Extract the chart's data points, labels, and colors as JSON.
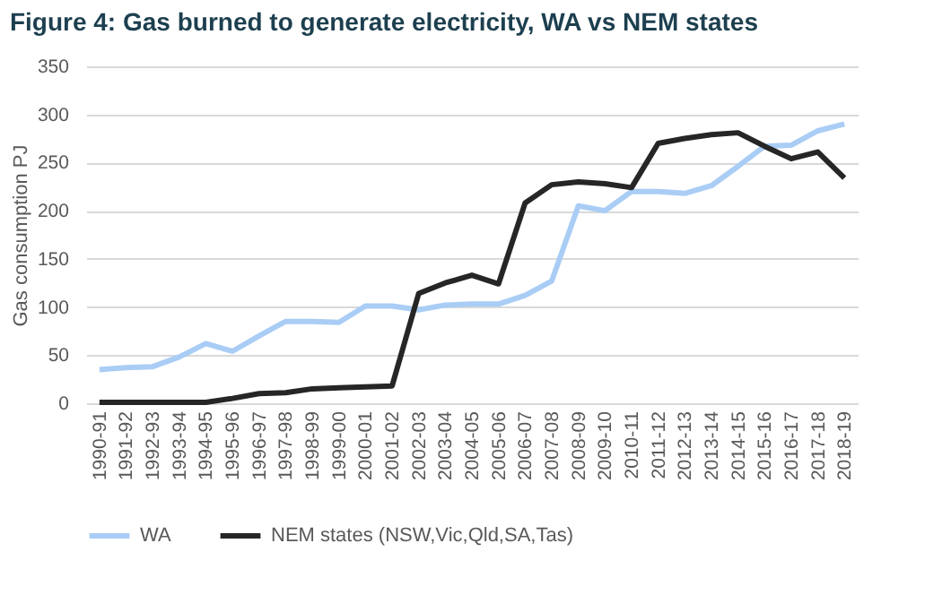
{
  "chart_data": {
    "type": "line",
    "title": "Figure 4: Gas burned to generate electricity, WA vs NEM states",
    "ylabel": "Gas consumption PJ",
    "categories": [
      "1990-91",
      "1991-92",
      "1992-93",
      "1993-94",
      "1994-95",
      "1995-96",
      "1996-97",
      "1997-98",
      "1998-99",
      "1999-00",
      "2000-01",
      "2001-02",
      "2002-03",
      "2003-04",
      "2004-05",
      "2005-06",
      "2006-07",
      "2007-08",
      "2008-09",
      "2009-10",
      "2010-11",
      "2011-12",
      "2012-13",
      "2013-14",
      "2014-15",
      "2015-16",
      "2016-17",
      "2017-18",
      "2018-19"
    ],
    "series": [
      {
        "name": "WA",
        "color": "#a9cdf5",
        "values": [
          35,
          37,
          38,
          48,
          62,
          54,
          70,
          85,
          85,
          84,
          101,
          101,
          97,
          102,
          103,
          103,
          112,
          127,
          205,
          200,
          220,
          220,
          218,
          226,
          246,
          267,
          268,
          283,
          290
        ]
      },
      {
        "name": "NEM states (NSW,Vic,Qld,SA,Tas)",
        "color": "#262626",
        "values": [
          1,
          1,
          1,
          1,
          1,
          5,
          10,
          11,
          15,
          16,
          17,
          18,
          114,
          125,
          133,
          124,
          208,
          227,
          230,
          228,
          224,
          270,
          275,
          279,
          281,
          267,
          254,
          261,
          234
        ]
      }
    ],
    "ylim": [
      0,
      350
    ],
    "yticks": [
      0,
      50,
      100,
      150,
      200,
      250,
      300,
      350
    ],
    "grid": "y",
    "legend": "bottom",
    "marker": "none",
    "line_style": "solid"
  }
}
